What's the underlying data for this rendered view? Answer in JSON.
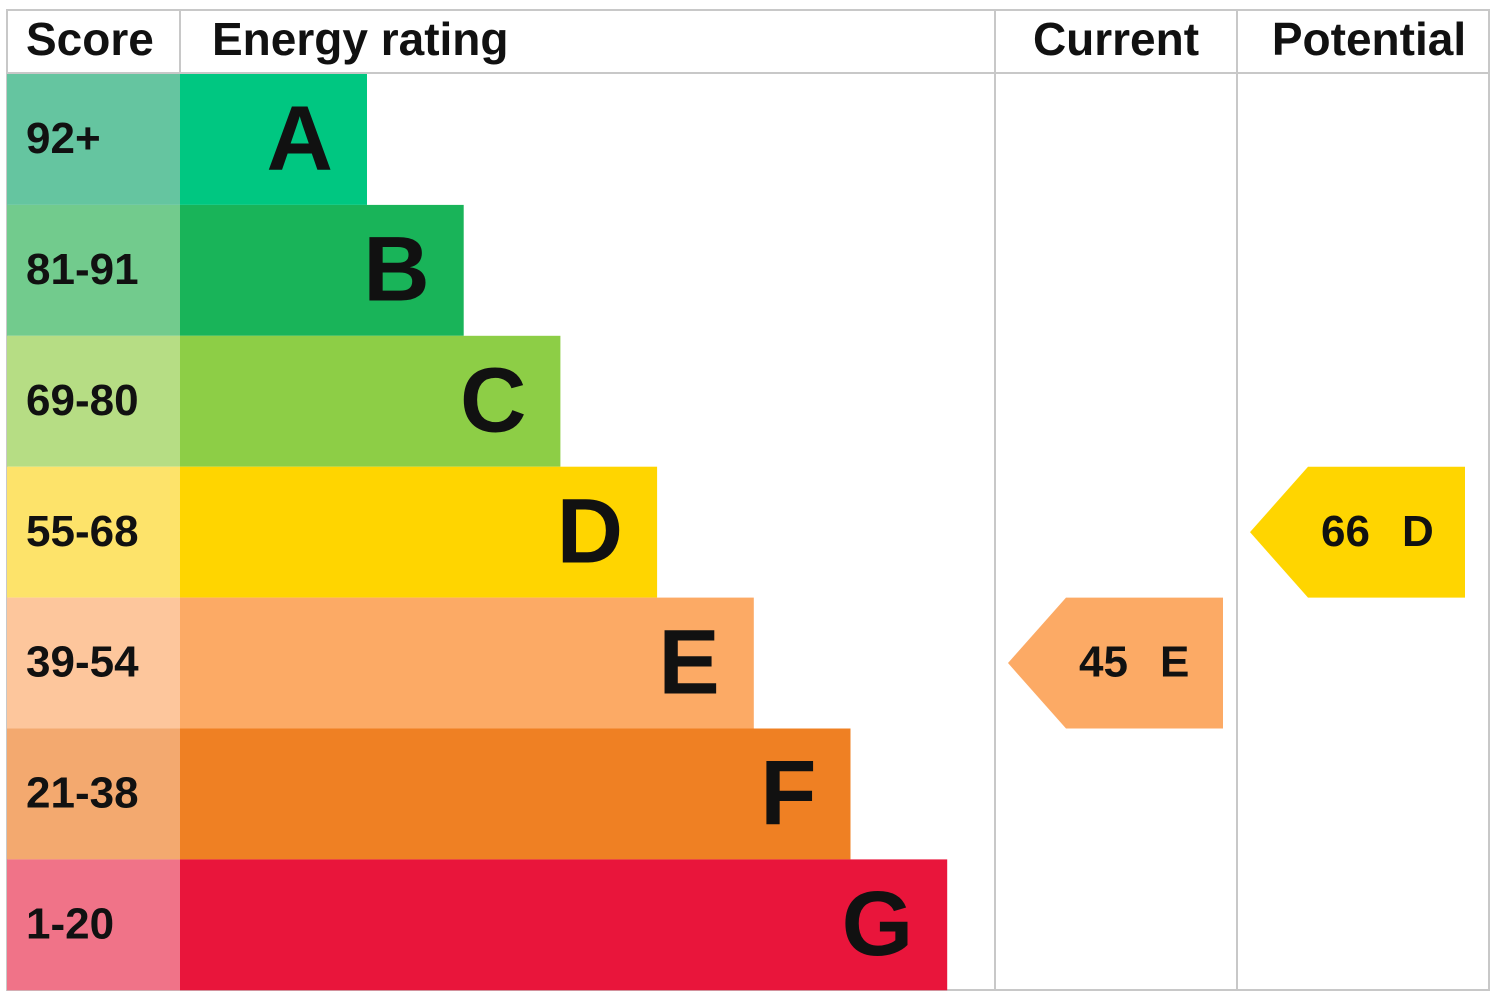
{
  "header": {
    "score": "Score",
    "rating": "Energy rating",
    "current": "Current",
    "potential": "Potential"
  },
  "rows": [
    {
      "score": "92+",
      "rating": "A",
      "color": "#00c781",
      "score_color": "#65c5a0"
    },
    {
      "score": "81-91",
      "rating": "B",
      "color": "#19b459",
      "score_color": "#72cb8d"
    },
    {
      "score": "69-80",
      "rating": "C",
      "color": "#8dce46",
      "score_color": "#b6dd84"
    },
    {
      "score": "55-68",
      "rating": "D",
      "color": "#ffd500",
      "score_color": "#fde36a"
    },
    {
      "score": "39-54",
      "rating": "E",
      "color": "#fcaa65",
      "score_color": "#fdc69c"
    },
    {
      "score": "21-38",
      "rating": "F",
      "color": "#ef8023",
      "score_color": "#f3a96f"
    },
    {
      "score": "1-20",
      "rating": "G",
      "color": "#e9153b",
      "score_color": "#f07388"
    }
  ],
  "current": {
    "value": 45,
    "rating": "E"
  },
  "potential": {
    "value": 66,
    "rating": "D"
  }
}
